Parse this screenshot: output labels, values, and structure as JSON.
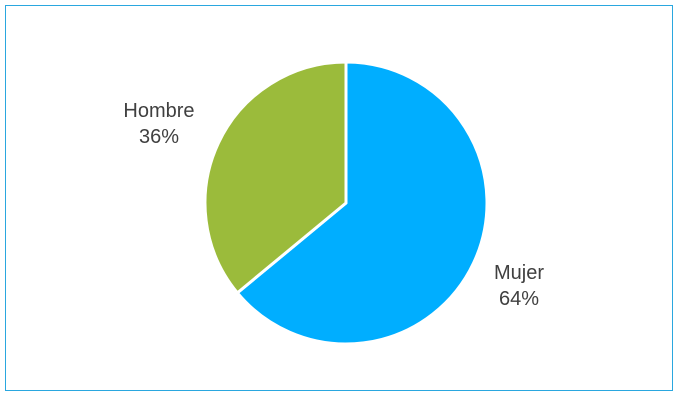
{
  "chart_data": {
    "type": "pie",
    "title": "",
    "slices": [
      {
        "label": "Mujer",
        "value": 64,
        "percent_label": "64%",
        "color": "#00AEFF"
      },
      {
        "label": "Hombre",
        "value": 36,
        "percent_label": "36%",
        "color": "#9BBB3B"
      }
    ],
    "start_angle_deg": 0,
    "direction": "clockwise",
    "legend": "none",
    "slice_border_color": "#FFFFFF",
    "frame_color": "#2AA7DF"
  }
}
